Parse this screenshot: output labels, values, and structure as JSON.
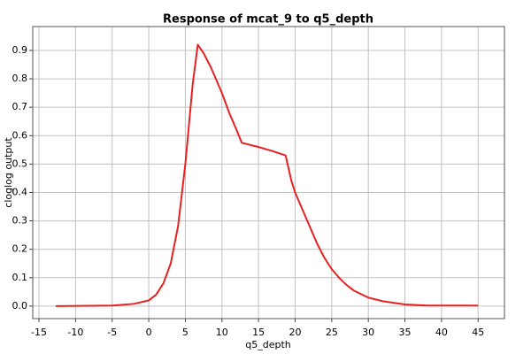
{
  "chart_data": {
    "type": "line",
    "title": "Response of mcat_9 to q5_depth",
    "xlabel": "q5_depth",
    "ylabel": "cloglog output",
    "x": [
      -12.7,
      -5,
      -2,
      0,
      1,
      2,
      3,
      4,
      5,
      6,
      6.7,
      7.5,
      8.5,
      10,
      11,
      12,
      12.7,
      15,
      17,
      18.7,
      19.5,
      20,
      21,
      22,
      23,
      24,
      25,
      26,
      27,
      28,
      30,
      32,
      35,
      38,
      45
    ],
    "values": [
      0,
      0.002,
      0.008,
      0.02,
      0.04,
      0.08,
      0.15,
      0.28,
      0.5,
      0.78,
      0.92,
      0.89,
      0.84,
      0.75,
      0.68,
      0.62,
      0.575,
      0.56,
      0.545,
      0.53,
      0.44,
      0.4,
      0.34,
      0.28,
      0.22,
      0.17,
      0.13,
      0.1,
      0.075,
      0.055,
      0.03,
      0.017,
      0.006,
      0.002,
      0.002
    ],
    "color": "#e82020",
    "xlim": [
      -15.85,
      48.6
    ],
    "ylim": [
      -0.044,
      0.984
    ],
    "xticks": [
      -15,
      -10,
      -5,
      0,
      5,
      10,
      15,
      20,
      25,
      30,
      35,
      40,
      45
    ],
    "yticks": [
      {
        "value": 0,
        "label": "0.0"
      },
      0.1,
      0.2,
      0.3,
      0.4,
      0.5,
      0.6,
      0.7,
      0.8,
      0.9
    ],
    "grid": true
  }
}
